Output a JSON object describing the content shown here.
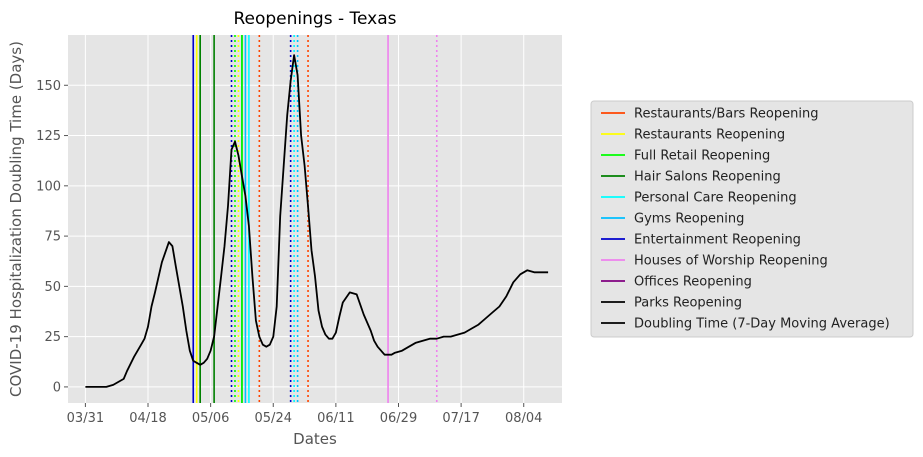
{
  "chart_data": {
    "type": "line",
    "title": "Reopenings - Texas",
    "xlabel": "Dates",
    "ylabel": "COVID-19 Hospitalization Doubling Time (Days)",
    "ylim": [
      -8,
      175
    ],
    "xlim": [
      "03/26",
      "08/15"
    ],
    "xticks": [
      "03/31",
      "04/18",
      "05/06",
      "05/24",
      "06/11",
      "06/29",
      "07/17",
      "08/04"
    ],
    "yticks": [
      0,
      25,
      50,
      75,
      100,
      125,
      150
    ],
    "grid": true,
    "legend_position": "right",
    "legend": [
      {
        "label": "Restaurants/Bars Reopening",
        "color": "#ff4500"
      },
      {
        "label": "Restaurants Reopening",
        "color": "#ffff00"
      },
      {
        "label": "Full Retail Reopening",
        "color": "#00ff00"
      },
      {
        "label": "Hair Salons Reopening",
        "color": "#008000"
      },
      {
        "label": "Personal Care Reopening",
        "color": "#00ffff"
      },
      {
        "label": "Gyms Reopening",
        "color": "#00bfff"
      },
      {
        "label": "Entertainment Reopening",
        "color": "#0000cd"
      },
      {
        "label": "Houses of Worship Reopening",
        "color": "#ee82ee"
      },
      {
        "label": "Offices Reopening",
        "color": "#800080"
      },
      {
        "label": "Parks Reopening",
        "color": "#000000"
      },
      {
        "label": "Doubling Time (7-Day Moving Average)",
        "color": "#000000"
      }
    ],
    "vlines": [
      {
        "date": "05/01",
        "color": "#0000cd",
        "style": "solid"
      },
      {
        "date": "05/02",
        "color": "#ffff00",
        "style": "solid"
      },
      {
        "date": "05/03",
        "color": "#00ff00",
        "style": "solid"
      },
      {
        "date": "05/03",
        "color": "#008000",
        "style": "solid"
      },
      {
        "date": "05/07",
        "color": "#008000",
        "style": "solid"
      },
      {
        "date": "05/12",
        "color": "#0000cd",
        "style": "dotted"
      },
      {
        "date": "05/13",
        "color": "#00ff00",
        "style": "dotted"
      },
      {
        "date": "05/14",
        "color": "#ffff00",
        "style": "dotted"
      },
      {
        "date": "05/15",
        "color": "#008000",
        "style": "solid"
      },
      {
        "date": "05/15",
        "color": "#00ff00",
        "style": "solid"
      },
      {
        "date": "05/16",
        "color": "#00bfff",
        "style": "solid"
      },
      {
        "date": "05/17",
        "color": "#00ffff",
        "style": "solid"
      },
      {
        "date": "05/20",
        "color": "#ff4500",
        "style": "dotted"
      },
      {
        "date": "05/29",
        "color": "#0000cd",
        "style": "dotted"
      },
      {
        "date": "05/30",
        "color": "#00ffff",
        "style": "dotted"
      },
      {
        "date": "05/31",
        "color": "#00bfff",
        "style": "dotted"
      },
      {
        "date": "06/03",
        "color": "#ff4500",
        "style": "dotted"
      },
      {
        "date": "06/26",
        "color": "#ee82ee",
        "style": "solid"
      },
      {
        "date": "07/10",
        "color": "#ee82ee",
        "style": "dotted"
      }
    ],
    "series": [
      {
        "color": "#000000",
        "x": [
          "03/31",
          "04/03",
          "04/06",
          "04/08",
          "04/10",
          "04/11",
          "04/12",
          "04/14",
          "04/16",
          "04/17",
          "04/18",
          "04/19",
          "04/20",
          "04/22",
          "04/24",
          "04/25",
          "04/26",
          "04/27",
          "04/28",
          "04/29",
          "04/30",
          "05/01",
          "05/02",
          "05/03",
          "05/04",
          "05/05",
          "05/06",
          "05/07",
          "05/08",
          "05/09",
          "05/10",
          "05/11",
          "05/12",
          "05/13",
          "05/14",
          "05/15",
          "05/16",
          "05/17",
          "05/18",
          "05/19",
          "05/20",
          "05/21",
          "05/22",
          "05/23",
          "05/24",
          "05/25",
          "05/26",
          "05/27",
          "05/28",
          "05/29",
          "05/30",
          "05/31",
          "06/01",
          "06/02",
          "06/03",
          "06/04",
          "06/05",
          "06/06",
          "06/07",
          "06/08",
          "06/09",
          "06/10",
          "06/11",
          "06/12",
          "06/13",
          "06/15",
          "06/17",
          "06/19",
          "06/21",
          "06/22",
          "06/23",
          "06/24",
          "06/25",
          "06/26",
          "06/27",
          "06/28",
          "06/30",
          "07/02",
          "07/04",
          "07/06",
          "07/08",
          "07/10",
          "07/12",
          "07/14",
          "07/16",
          "07/18",
          "07/20",
          "07/22",
          "07/24",
          "07/26",
          "07/28",
          "07/30",
          "08/01",
          "08/03",
          "08/05",
          "08/07",
          "08/08",
          "08/09",
          "08/10",
          "08/11"
        ],
        "y": [
          0,
          0,
          0,
          1,
          3,
          4,
          8,
          15,
          21,
          24,
          30,
          40,
          47,
          62,
          72,
          70,
          60,
          50,
          40,
          28,
          18,
          13,
          12,
          11,
          12,
          14,
          18,
          25,
          40,
          55,
          70,
          90,
          118,
          122,
          115,
          105,
          95,
          80,
          55,
          33,
          25,
          21,
          20,
          21,
          25,
          40,
          85,
          110,
          135,
          152,
          165,
          155,
          125,
          110,
          90,
          68,
          55,
          38,
          30,
          26,
          24,
          24,
          27,
          35,
          42,
          47,
          46,
          36,
          28,
          23,
          20,
          18,
          16,
          16,
          16,
          17,
          18,
          20,
          22,
          23,
          24,
          24,
          25,
          25,
          26,
          27,
          29,
          31,
          34,
          37,
          40,
          45,
          52,
          56,
          58,
          57,
          57,
          57,
          57,
          57
        ]
      }
    ]
  }
}
